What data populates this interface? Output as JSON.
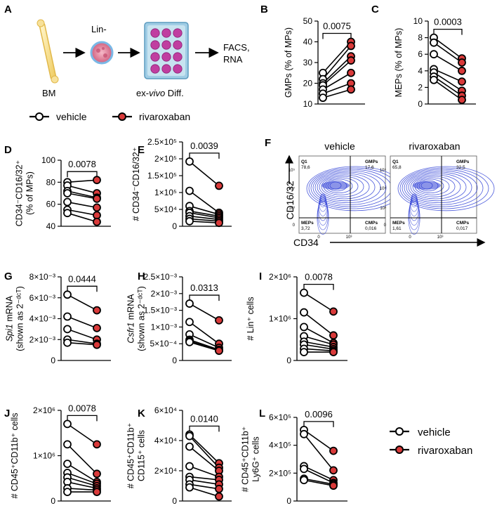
{
  "legend": {
    "vehicle": "vehicle",
    "rivaroxaban": "rivaroxaban"
  },
  "panel_a": {
    "letter": "A",
    "bm": "BM",
    "lin": "Lin-",
    "diff_pre": "ex-",
    "diff_it": "vivo",
    "diff_post": " Diff.",
    "facs": "FACS,",
    "rna": "RNA"
  },
  "flow": {
    "letter": "F",
    "ylabel": "CD16/32",
    "xlabel": "CD34",
    "y_ticks": [
      "10⁵",
      "10⁴",
      "10³",
      "0"
    ],
    "x_ticks": [
      "0",
      "10³"
    ],
    "plots": [
      {
        "title": "vehicle",
        "q1": "Q1",
        "q1v": "78,6",
        "gmp": "GMPs",
        "gmpv": "17,6",
        "mep": "MEPs",
        "mepv": "3,72",
        "cmp": "CMPs",
        "cmpv": "0,016"
      },
      {
        "title": "rivaroxaban",
        "q1": "Q1",
        "q1v": "65,8",
        "gmp": "GMPs",
        "gmpv": "32,5",
        "mep": "MEPs",
        "mepv": "1,61",
        "cmp": "CMPs",
        "cmpv": "0,017"
      }
    ]
  },
  "colors": {
    "rivaroxaban": "#d93a3a",
    "vehicle": "#ffffff",
    "contour": "#2c3dd6"
  },
  "chart_data": [
    {
      "letter": "B",
      "type": "scatter",
      "title": "",
      "ylabel": "GMPs (% of MPs)",
      "ylim": [
        10,
        50
      ],
      "yticks": [
        10,
        20,
        30,
        40,
        50
      ],
      "tick_labels": [
        "10",
        "20",
        "30",
        "40",
        "50"
      ],
      "p": "0.0075",
      "vehicle": [
        25,
        22,
        20,
        19,
        17,
        15,
        13
      ],
      "rivaroxaban": [
        40,
        38,
        33,
        31,
        25,
        20,
        17
      ]
    },
    {
      "letter": "C",
      "type": "scatter",
      "title": "",
      "ylabel": "MEPs (% of MPs)",
      "ylim": [
        0,
        10
      ],
      "yticks": [
        0,
        2,
        4,
        6,
        8,
        10
      ],
      "tick_labels": [
        "0",
        "2",
        "4",
        "6",
        "8",
        "10"
      ],
      "p": "0.0003",
      "vehicle": [
        8,
        7.4,
        6,
        4.2,
        3.8,
        3.3,
        2.9
      ],
      "rivaroxaban": [
        5.5,
        5,
        4,
        2.7,
        1.6,
        1,
        0.5
      ]
    },
    {
      "letter": "D",
      "type": "scatter",
      "title": "",
      "ylabel": "CD34⁻CD16/32⁺ (% of MPs)",
      "ylim": [
        40,
        100
      ],
      "yticks": [
        40,
        60,
        80,
        100
      ],
      "tick_labels": [
        "40",
        "60",
        "80",
        "100"
      ],
      "p": "0.0078",
      "vehicle": [
        80,
        77,
        72,
        70,
        62,
        55,
        52
      ],
      "rivaroxaban": [
        82,
        70,
        66,
        65,
        57,
        50,
        44
      ]
    },
    {
      "letter": "E",
      "type": "scatter",
      "title": "",
      "ylabel": "# CD34⁻CD16/32⁺",
      "ylim": [
        0,
        250000
      ],
      "yticks": [
        0,
        50000,
        100000,
        150000,
        200000,
        250000
      ],
      "tick_labels": [
        "0",
        "5×10⁴",
        "1×10⁵",
        "1.5×10⁵",
        "2×10⁵",
        "2.5×10⁵"
      ],
      "p": "0.0039",
      "vehicle": [
        192000,
        105000,
        60000,
        45000,
        40000,
        30000,
        22000,
        15000
      ],
      "rivaroxaban": [
        120000,
        40000,
        35000,
        30000,
        25000,
        20000,
        15000,
        10000
      ]
    },
    {
      "letter": "G",
      "type": "scatter",
      "title": "",
      "ylabel": "Spi1 mRNA (shown as 2^-dCT)",
      "ylim": [
        0,
        0.008
      ],
      "yticks": [
        0,
        0.002,
        0.004,
        0.006,
        0.008
      ],
      "tick_labels": [
        "0",
        "2×10⁻³",
        "4×10⁻³",
        "6×10⁻³",
        "8×10⁻³"
      ],
      "p": "0.0444",
      "vehicle": [
        0.0063,
        0.0042,
        0.003,
        0.002,
        0.0017
      ],
      "rivaroxaban": [
        0.0048,
        0.0031,
        0.002,
        0.0016,
        0.0015
      ]
    },
    {
      "letter": "H",
      "type": "scatter",
      "title": "",
      "ylabel": "Csfr1 mRNA (shown as 2^-dCT)",
      "ylim": [
        0,
        0.0025
      ],
      "yticks": [
        0,
        0.0005,
        0.001,
        0.0015,
        0.002,
        0.0025
      ],
      "tick_labels": [
        "0",
        "5×10⁻⁴",
        "1×10⁻³",
        "1.5×10⁻³",
        "2×10⁻³",
        "2.5×10⁻³"
      ],
      "p": "0.0313",
      "vehicle": [
        0.0017,
        0.00115,
        0.00078,
        0.00062,
        0.00058,
        0.00055
      ],
      "rivaroxaban": [
        0.0012,
        0.0005,
        0.00038,
        0.00032,
        0.0003,
        0.00029
      ]
    },
    {
      "letter": "I",
      "type": "scatter",
      "title": "",
      "ylabel": "# Lin⁺ cells",
      "ylim": [
        0,
        2000000
      ],
      "yticks": [
        0,
        1000000,
        2000000
      ],
      "tick_labels": [
        "0",
        "1×10⁶",
        "2×10⁶"
      ],
      "p": "0.0078",
      "vehicle": [
        1620000,
        1150000,
        800000,
        580000,
        450000,
        380000,
        280000,
        200000
      ],
      "rivaroxaban": [
        1170000,
        600000,
        420000,
        380000,
        320000,
        270000,
        230000,
        200000
      ]
    },
    {
      "letter": "J",
      "type": "scatter",
      "title": "",
      "ylabel": "# CD45⁺CD11b⁺ cells",
      "ylim": [
        0,
        2000000
      ],
      "yticks": [
        0,
        1000000,
        2000000
      ],
      "tick_labels": [
        "0",
        "1×10⁶",
        "2×10⁶"
      ],
      "p": "0.0078",
      "vehicle": [
        1700000,
        1250000,
        820000,
        620000,
        520000,
        420000,
        280000,
        200000
      ],
      "rivaroxaban": [
        1250000,
        600000,
        420000,
        380000,
        330000,
        280000,
        240000,
        200000
      ]
    },
    {
      "letter": "K",
      "type": "scatter",
      "title": "",
      "ylabel": "# CD45⁺CD11b⁺ CD115⁺ cells",
      "ylim": [
        0,
        60000
      ],
      "yticks": [
        0,
        20000,
        40000,
        60000
      ],
      "tick_labels": [
        "0",
        "2×10⁴",
        "4×10⁴",
        "6×10⁴"
      ],
      "p": "0.0140",
      "vehicle": [
        44000,
        43000,
        36000,
        23000,
        16000,
        14000,
        11000,
        9000
      ],
      "rivaroxaban": [
        25000,
        22000,
        20000,
        16000,
        14000,
        11000,
        8000,
        3000
      ]
    },
    {
      "letter": "L",
      "type": "scatter",
      "title": "",
      "ylabel": "# CD45⁺CD11b⁺ Ly6G⁺ cells",
      "ylim": [
        0,
        600000
      ],
      "yticks": [
        0,
        200000,
        400000,
        600000
      ],
      "tick_labels": [
        "0",
        "2×10⁵",
        "4×10⁵",
        "6×10⁵"
      ],
      "p": "0.0096",
      "vehicle": [
        510000,
        480000,
        250000,
        230000,
        160000,
        150000
      ],
      "rivaroxaban": [
        360000,
        220000,
        150000,
        130000,
        120000,
        110000
      ]
    }
  ]
}
